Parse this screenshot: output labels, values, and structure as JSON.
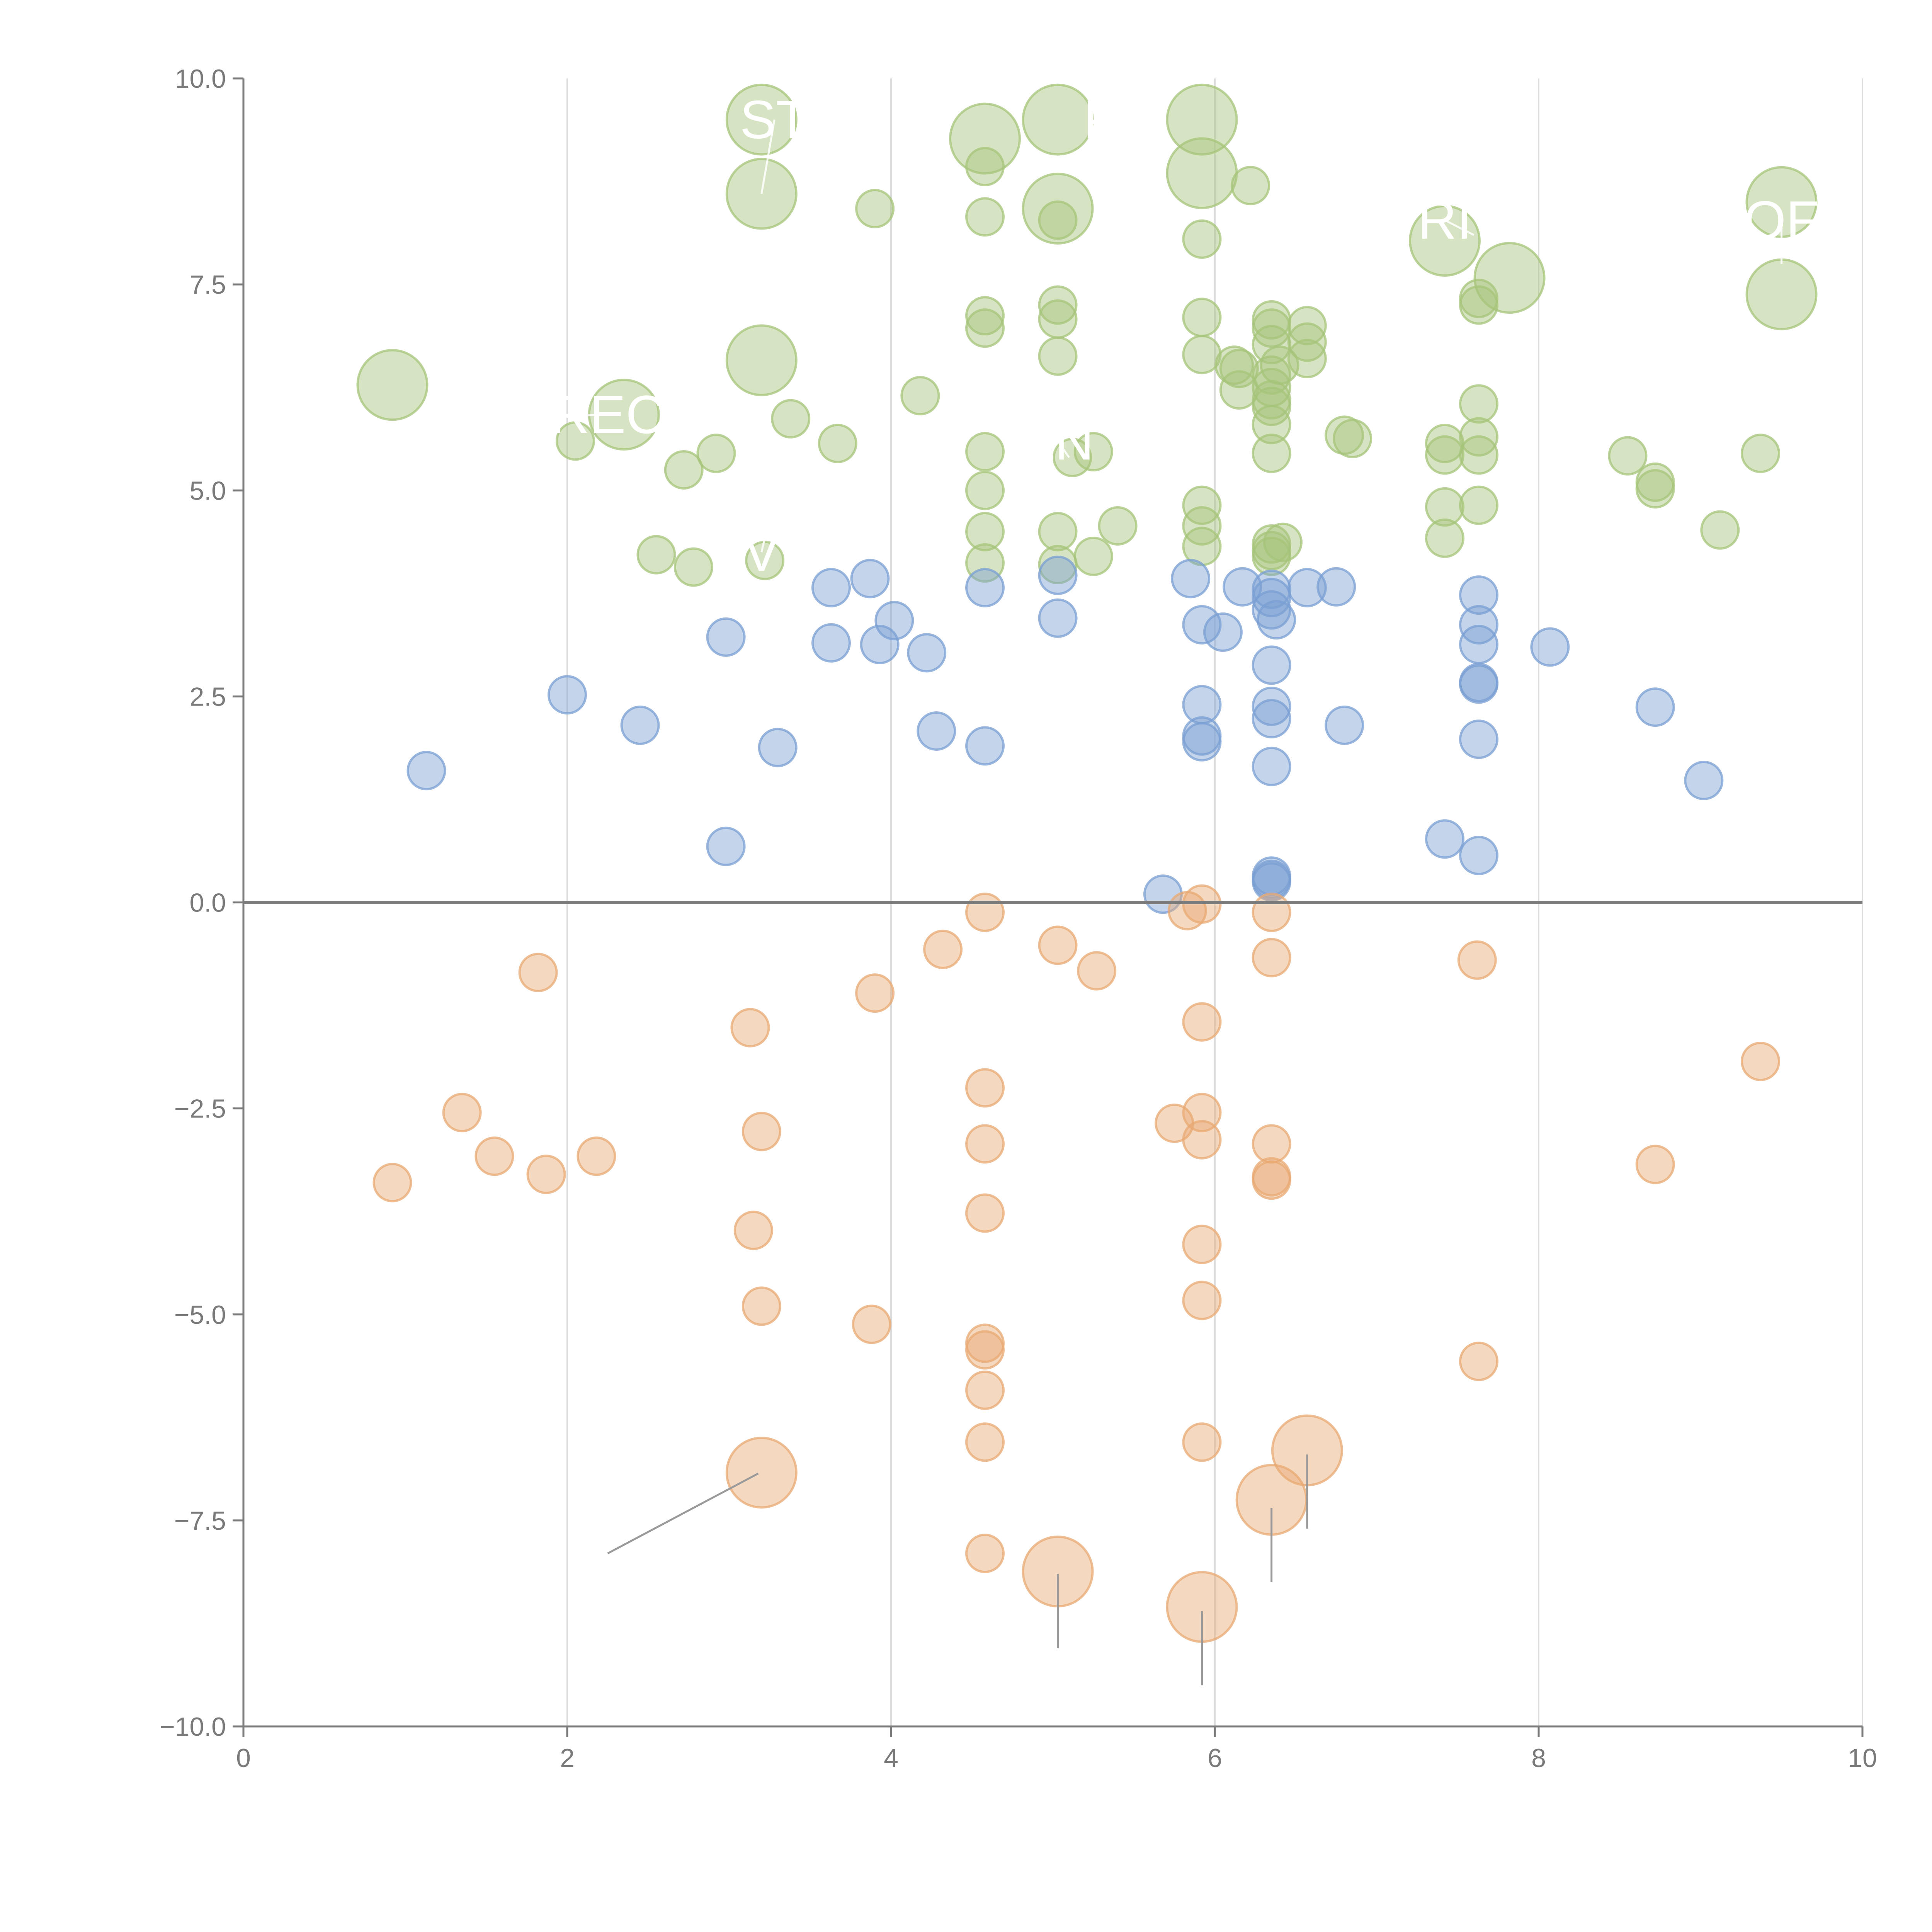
{
  "chart_data": {
    "type": "scatter",
    "title": "",
    "xlabel": "",
    "ylabel": "",
    "xlim": [
      0,
      10
    ],
    "ylim": [
      -10,
      10
    ],
    "x_ticks": [
      0,
      2,
      4,
      6,
      8,
      10
    ],
    "y_ticks": [
      10.0,
      7.5,
      5.0,
      2.5,
      0.0,
      -2.5,
      -5.0,
      -7.5,
      -10.0
    ],
    "x_tick_labels": [
      "0",
      "2",
      "4",
      "6",
      "8",
      "10"
    ],
    "y_tick_labels": [
      "10.0",
      "7.5",
      "5.0",
      "2.5",
      "0.0",
      "−2.5",
      "−5.0",
      "−7.5",
      "−10.0"
    ],
    "grid": "vertical gridlines at x ticks",
    "zero_line": 0,
    "legend": "none",
    "series": [
      {
        "color": "#a6c47a",
        "points": [
          [
            0.92,
            6.28,
            "big"
          ],
          [
            2.35,
            5.92,
            "big"
          ],
          [
            3.2,
            9.5,
            "big"
          ],
          [
            3.2,
            8.6,
            "big"
          ],
          [
            3.2,
            6.58,
            "big"
          ],
          [
            4.58,
            9.27,
            "big"
          ],
          [
            5.03,
            9.5,
            "big"
          ],
          [
            5.03,
            8.42,
            "big"
          ],
          [
            5.92,
            9.5,
            "big"
          ],
          [
            5.92,
            8.85,
            "big"
          ],
          [
            7.42,
            8.03,
            "big"
          ],
          [
            7.82,
            7.58,
            "big"
          ],
          [
            9.5,
            8.5,
            "big"
          ],
          [
            9.5,
            7.38,
            "big"
          ],
          [
            2.05,
            5.6
          ],
          [
            2.55,
            4.22
          ],
          [
            2.72,
            5.25
          ],
          [
            2.78,
            4.07
          ],
          [
            2.92,
            5.45
          ],
          [
            3.22,
            4.15
          ],
          [
            3.38,
            5.87
          ],
          [
            3.67,
            5.57
          ],
          [
            3.9,
            8.42
          ],
          [
            4.18,
            6.15
          ],
          [
            4.58,
            8.93
          ],
          [
            4.58,
            8.32
          ],
          [
            4.58,
            7.12
          ],
          [
            4.58,
            6.97
          ],
          [
            4.58,
            5.47
          ],
          [
            4.58,
            5.0
          ],
          [
            4.58,
            4.5
          ],
          [
            4.58,
            4.12
          ],
          [
            5.03,
            8.28
          ],
          [
            5.03,
            7.25
          ],
          [
            5.03,
            7.08
          ],
          [
            5.03,
            6.63
          ],
          [
            5.03,
            4.5
          ],
          [
            5.03,
            4.1
          ],
          [
            5.12,
            5.4
          ],
          [
            5.25,
            5.47
          ],
          [
            5.25,
            4.2
          ],
          [
            5.4,
            4.57
          ],
          [
            5.92,
            8.05
          ],
          [
            5.92,
            7.1
          ],
          [
            5.92,
            6.65
          ],
          [
            5.92,
            4.82
          ],
          [
            5.92,
            4.57
          ],
          [
            5.92,
            4.32
          ],
          [
            6.22,
            8.7
          ],
          [
            6.12,
            6.52
          ],
          [
            6.15,
            6.48
          ],
          [
            6.15,
            6.22
          ],
          [
            6.35,
            7.07
          ],
          [
            6.35,
            6.97
          ],
          [
            6.35,
            6.77
          ],
          [
            6.35,
            6.4
          ],
          [
            6.35,
            6.25
          ],
          [
            6.35,
            6.1
          ],
          [
            6.35,
            6.02
          ],
          [
            6.35,
            5.8
          ],
          [
            6.35,
            5.45
          ],
          [
            6.35,
            4.35
          ],
          [
            6.35,
            4.27
          ],
          [
            6.35,
            4.2
          ],
          [
            6.42,
            4.37
          ],
          [
            6.4,
            6.52
          ],
          [
            6.57,
            7.0
          ],
          [
            6.57,
            6.8
          ],
          [
            6.57,
            6.6
          ],
          [
            6.8,
            5.67
          ],
          [
            6.85,
            5.63
          ],
          [
            7.42,
            5.57
          ],
          [
            7.42,
            5.43
          ],
          [
            7.42,
            4.8
          ],
          [
            7.42,
            4.42
          ],
          [
            7.63,
            7.33
          ],
          [
            7.63,
            7.25
          ],
          [
            7.63,
            6.05
          ],
          [
            7.63,
            5.65
          ],
          [
            7.63,
            5.43
          ],
          [
            7.63,
            4.82
          ],
          [
            8.55,
            5.42
          ],
          [
            8.72,
            5.1
          ],
          [
            8.72,
            5.02
          ],
          [
            9.12,
            4.52
          ],
          [
            9.37,
            5.45
          ]
        ]
      },
      {
        "color": "#7a9fd3",
        "points": [
          [
            1.13,
            1.6
          ],
          [
            2.0,
            2.52
          ],
          [
            2.45,
            2.15
          ],
          [
            2.98,
            0.68
          ],
          [
            2.98,
            3.22
          ],
          [
            3.3,
            1.88
          ],
          [
            3.63,
            3.82
          ],
          [
            3.63,
            3.15
          ],
          [
            3.87,
            3.93
          ],
          [
            3.93,
            3.13
          ],
          [
            4.02,
            3.42
          ],
          [
            4.22,
            3.03
          ],
          [
            4.28,
            2.08
          ],
          [
            4.58,
            3.82
          ],
          [
            4.58,
            1.9
          ],
          [
            5.03,
            3.97
          ],
          [
            5.03,
            3.45
          ],
          [
            5.68,
            0.1
          ],
          [
            5.85,
            3.93
          ],
          [
            5.92,
            3.37
          ],
          [
            5.92,
            2.4
          ],
          [
            5.92,
            2.02
          ],
          [
            5.92,
            1.95
          ],
          [
            6.05,
            3.28
          ],
          [
            6.17,
            3.83
          ],
          [
            6.35,
            3.8
          ],
          [
            6.35,
            3.7
          ],
          [
            6.35,
            3.55
          ],
          [
            6.38,
            3.43
          ],
          [
            6.35,
            2.88
          ],
          [
            6.35,
            2.38
          ],
          [
            6.35,
            2.23
          ],
          [
            6.35,
            1.65
          ],
          [
            6.35,
            0.32
          ],
          [
            6.35,
            0.28
          ],
          [
            6.35,
            0.25
          ],
          [
            6.57,
            3.82
          ],
          [
            6.75,
            3.83
          ],
          [
            6.8,
            2.15
          ],
          [
            7.42,
            0.77
          ],
          [
            7.63,
            3.73
          ],
          [
            7.63,
            3.37
          ],
          [
            7.63,
            3.13
          ],
          [
            7.63,
            2.67
          ],
          [
            7.63,
            2.65
          ],
          [
            7.63,
            1.98
          ],
          [
            7.63,
            0.57
          ],
          [
            8.07,
            3.1
          ],
          [
            8.72,
            2.37
          ],
          [
            9.02,
            1.48
          ]
        ]
      },
      {
        "color": "#e8a973",
        "points": [
          [
            3.2,
            -6.92,
            "big"
          ],
          [
            5.03,
            -8.12,
            "big"
          ],
          [
            5.92,
            -8.55,
            "big"
          ],
          [
            6.35,
            -7.25,
            "big"
          ],
          [
            6.57,
            -6.65,
            "big"
          ],
          [
            0.92,
            -3.4
          ],
          [
            1.35,
            -2.55
          ],
          [
            1.55,
            -3.08
          ],
          [
            1.82,
            -0.85
          ],
          [
            1.87,
            -3.3
          ],
          [
            2.18,
            -3.08
          ],
          [
            3.13,
            -1.52
          ],
          [
            3.15,
            -3.98
          ],
          [
            3.2,
            -2.78
          ],
          [
            3.2,
            -4.9
          ],
          [
            3.88,
            -5.12
          ],
          [
            3.9,
            -1.1
          ],
          [
            4.32,
            -0.57
          ],
          [
            4.58,
            -0.12
          ],
          [
            4.58,
            -2.25
          ],
          [
            4.58,
            -2.93
          ],
          [
            4.58,
            -3.77
          ],
          [
            4.58,
            -5.35
          ],
          [
            4.58,
            -5.43
          ],
          [
            4.58,
            -5.92
          ],
          [
            4.58,
            -6.55
          ],
          [
            4.58,
            -7.9
          ],
          [
            5.03,
            -0.52
          ],
          [
            5.27,
            -0.83
          ],
          [
            5.75,
            -2.68
          ],
          [
            5.83,
            -0.1
          ],
          [
            5.92,
            -0.02
          ],
          [
            5.92,
            -1.45
          ],
          [
            5.92,
            -2.55
          ],
          [
            5.92,
            -2.88
          ],
          [
            5.92,
            -4.15
          ],
          [
            5.92,
            -4.83
          ],
          [
            5.92,
            -6.55
          ],
          [
            6.35,
            -0.12
          ],
          [
            6.35,
            -0.67
          ],
          [
            6.35,
            -2.93
          ],
          [
            6.35,
            -3.33
          ],
          [
            6.35,
            -3.37
          ],
          [
            7.62,
            -0.7
          ],
          [
            7.63,
            -5.57
          ],
          [
            8.72,
            -3.18
          ],
          [
            9.37,
            -1.93
          ]
        ]
      }
    ],
    "annotations": [
      {
        "text": "ST",
        "x": 3.28,
        "y": 9.5,
        "tx": 3.2,
        "ty": 8.6
      },
      {
        "text": "REC",
        "x": 2.25,
        "y": 5.92,
        "tx": 1.95,
        "ty": 5.9
      },
      {
        "text": "P",
        "x": 5.3,
        "y": 9.5,
        "tx": 5.58,
        "ty": 9.5
      },
      {
        "text": "RI",
        "x": 7.42,
        "y": 8.28,
        "tx": 7.6,
        "ty": 8.1
      },
      {
        "text": "OF",
        "x": 9.5,
        "y": 8.28,
        "tx": 9.5,
        "ty": 7.75
      },
      {
        "text": "ZN",
        "x": 5.03,
        "y": 5.6,
        "tx": 5.1,
        "ty": 5.4
      },
      {
        "text": "V",
        "x": 3.2,
        "y": 4.25,
        "tx": 3.22,
        "ty": 4.42
      }
    ]
  }
}
